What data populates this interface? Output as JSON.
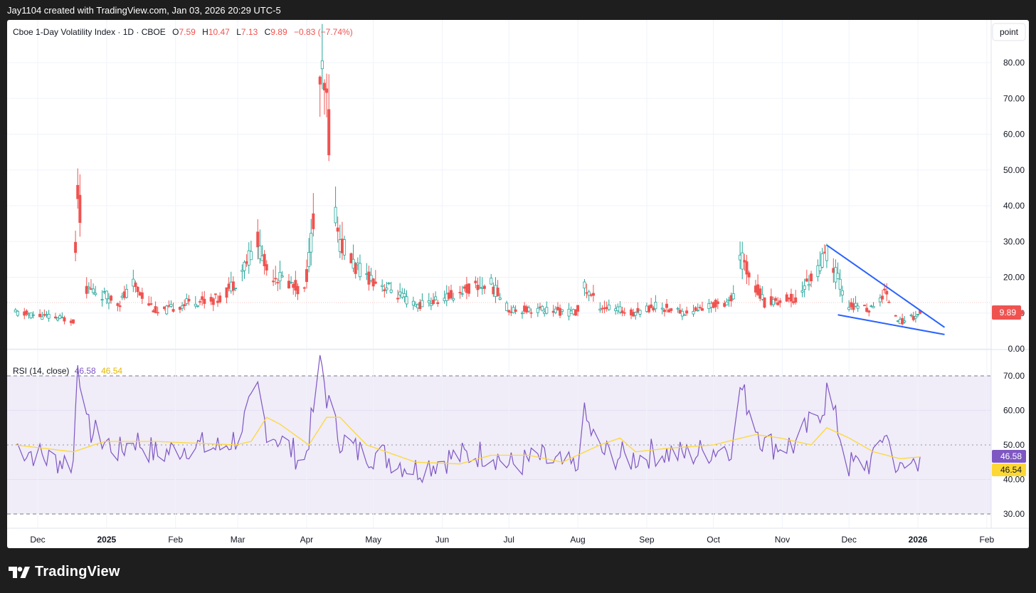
{
  "header": {
    "credit": "Jay1104 created with TradingView.com, Jan 03, 2026 20:29 UTC-5"
  },
  "legend": {
    "symbol": "Cboe 1-Day Volatility Index · 1D · CBOE",
    "o_label": "O",
    "o_value": "7.59",
    "h_label": "H",
    "h_value": "10.47",
    "l_label": "L",
    "l_value": "7.13",
    "c_label": "C",
    "c_value": "9.89",
    "change": "−0.83 (−7.74%)"
  },
  "scale_button": "point",
  "rsi_legend": {
    "label": "RSI (14, close)",
    "rsi_value": "46.58",
    "ma_value": "46.54"
  },
  "price_badge": "9.89",
  "rsi_badges": {
    "rsi": "46.58",
    "ma": "46.54"
  },
  "brand": {
    "name": "TradingView"
  },
  "colors": {
    "up": "#26a69a",
    "down": "#ef5350",
    "rsi": "#7e57c2",
    "rsi_ma": "#fdd835",
    "trendline": "#2962ff",
    "rsi_band": "#f0ecf8"
  },
  "chart_data": [
    {
      "type": "candlestick",
      "title": "Cboe 1-Day Volatility Index · 1D · CBOE",
      "x_ticks": [
        "Dec",
        "2025",
        "Feb",
        "Mar",
        "Apr",
        "May",
        "Jun",
        "Jul",
        "Aug",
        "Sep",
        "Oct",
        "Nov",
        "Dec",
        "2026",
        "Feb"
      ],
      "y_ticks": [
        "0.00",
        "10.00",
        "20.00",
        "30.00",
        "40.00",
        "50.00",
        "60.00",
        "70.00",
        "80.00"
      ],
      "ylim": [
        0,
        85
      ],
      "last_close": 9.89,
      "anchors": [
        [
          "2024-11-21",
          10
        ],
        [
          "2024-12-05",
          9
        ],
        [
          "2024-12-17",
          8
        ],
        [
          "2024-12-19",
          46
        ],
        [
          "2024-12-23",
          17
        ],
        [
          "2025-01-07",
          13
        ],
        [
          "2025-01-13",
          18
        ],
        [
          "2025-01-24",
          10
        ],
        [
          "2025-02-07",
          13
        ],
        [
          "2025-02-21",
          14
        ],
        [
          "2025-02-28",
          19
        ],
        [
          "2025-03-10",
          30
        ],
        [
          "2025-03-14",
          22
        ],
        [
          "2025-03-31",
          16
        ],
        [
          "2025-04-04",
          35
        ],
        [
          "2025-04-07",
          75
        ],
        [
          "2025-04-10",
          68
        ],
        [
          "2025-04-14",
          38
        ],
        [
          "2025-04-16",
          30
        ],
        [
          "2025-04-24",
          22
        ],
        [
          "2025-05-05",
          18
        ],
        [
          "2025-05-20",
          12
        ],
        [
          "2025-06-02",
          14
        ],
        [
          "2025-06-13",
          17
        ],
        [
          "2025-06-23",
          18
        ],
        [
          "2025-07-01",
          11
        ],
        [
          "2025-07-15",
          11
        ],
        [
          "2025-07-31",
          10
        ],
        [
          "2025-08-04",
          17
        ],
        [
          "2025-08-11",
          12
        ],
        [
          "2025-08-25",
          10
        ],
        [
          "2025-09-05",
          12
        ],
        [
          "2025-09-19",
          10
        ],
        [
          "2025-10-10",
          14
        ],
        [
          "2025-10-13",
          26
        ],
        [
          "2025-10-24",
          13
        ],
        [
          "2025-11-07",
          14
        ],
        [
          "2025-11-20",
          25
        ],
        [
          "2025-11-21",
          27
        ],
        [
          "2025-12-01",
          12
        ],
        [
          "2025-12-12",
          11
        ],
        [
          "2025-12-17",
          16
        ],
        [
          "2025-12-24",
          7.5
        ],
        [
          "2026-01-02",
          9.89
        ]
      ],
      "annotations": [
        {
          "type": "trendline",
          "from": [
            "2025-11-21",
            29
          ],
          "to": [
            "2026-01-13",
            6
          ]
        },
        {
          "type": "trendline",
          "from": [
            "2025-11-26",
            9.5
          ],
          "to": [
            "2026-01-13",
            4
          ]
        }
      ]
    },
    {
      "type": "line",
      "title": "RSI (14, close)",
      "y_ticks": [
        "30.00",
        "40.00",
        "50.00",
        "60.00",
        "70.00"
      ],
      "ylim": [
        26,
        76
      ],
      "bands": [
        30,
        50,
        70
      ],
      "series": [
        {
          "name": "RSI",
          "last": 46.58,
          "anchors": [
            [
              "2024-11-21",
              50
            ],
            [
              "2024-12-05",
              46
            ],
            [
              "2024-12-17",
              45
            ],
            [
              "2024-12-19",
              76
            ],
            [
              "2024-12-23",
              55
            ],
            [
              "2025-01-07",
              48
            ],
            [
              "2025-01-13",
              52
            ],
            [
              "2025-01-24",
              47
            ],
            [
              "2025-02-07",
              50
            ],
            [
              "2025-02-21",
              49
            ],
            [
              "2025-02-28",
              52
            ],
            [
              "2025-03-10",
              65
            ],
            [
              "2025-03-14",
              55
            ],
            [
              "2025-03-31",
              45
            ],
            [
              "2025-04-04",
              60
            ],
            [
              "2025-04-07",
              76
            ],
            [
              "2025-04-10",
              64
            ],
            [
              "2025-04-14",
              55
            ],
            [
              "2025-04-16",
              52
            ],
            [
              "2025-04-24",
              48
            ],
            [
              "2025-05-05",
              47
            ],
            [
              "2025-05-20",
              43
            ],
            [
              "2025-06-02",
              46
            ],
            [
              "2025-06-13",
              47
            ],
            [
              "2025-06-23",
              48
            ],
            [
              "2025-07-01",
              44
            ],
            [
              "2025-07-15",
              46
            ],
            [
              "2025-07-31",
              43
            ],
            [
              "2025-08-04",
              58
            ],
            [
              "2025-08-11",
              48
            ],
            [
              "2025-08-25",
              46
            ],
            [
              "2025-09-05",
              48
            ],
            [
              "2025-09-19",
              47
            ],
            [
              "2025-10-10",
              50
            ],
            [
              "2025-10-13",
              67
            ],
            [
              "2025-10-24",
              50
            ],
            [
              "2025-11-07",
              50
            ],
            [
              "2025-11-20",
              62
            ],
            [
              "2025-11-21",
              66
            ],
            [
              "2025-12-01",
              44
            ],
            [
              "2025-12-12",
              45
            ],
            [
              "2025-12-17",
              54
            ],
            [
              "2025-12-24",
              42
            ],
            [
              "2026-01-02",
              46.58
            ]
          ]
        },
        {
          "name": "RSI-based MA",
          "last": 46.54,
          "anchors": [
            [
              "2024-11-21",
              50
            ],
            [
              "2024-12-17",
              48
            ],
            [
              "2024-12-31",
              51
            ],
            [
              "2025-01-24",
              51
            ],
            [
              "2025-02-28",
              50
            ],
            [
              "2025-03-07",
              51
            ],
            [
              "2025-03-14",
              58
            ],
            [
              "2025-03-20",
              56
            ],
            [
              "2025-04-02",
              50
            ],
            [
              "2025-04-10",
              58
            ],
            [
              "2025-04-16",
              58
            ],
            [
              "2025-04-28",
              50
            ],
            [
              "2025-05-20",
              45
            ],
            [
              "2025-06-09",
              44.5
            ],
            [
              "2025-06-23",
              47
            ],
            [
              "2025-07-10",
              47
            ],
            [
              "2025-07-25",
              45
            ],
            [
              "2025-08-11",
              50
            ],
            [
              "2025-08-20",
              52
            ],
            [
              "2025-08-27",
              48
            ],
            [
              "2025-09-10",
              49
            ],
            [
              "2025-10-01",
              50
            ],
            [
              "2025-10-20",
              53
            ],
            [
              "2025-10-31",
              52
            ],
            [
              "2025-11-14",
              50
            ],
            [
              "2025-11-21",
              55
            ],
            [
              "2025-12-01",
              52
            ],
            [
              "2025-12-12",
              48
            ],
            [
              "2025-12-24",
              46
            ],
            [
              "2026-01-02",
              46.54
            ]
          ]
        }
      ]
    }
  ]
}
